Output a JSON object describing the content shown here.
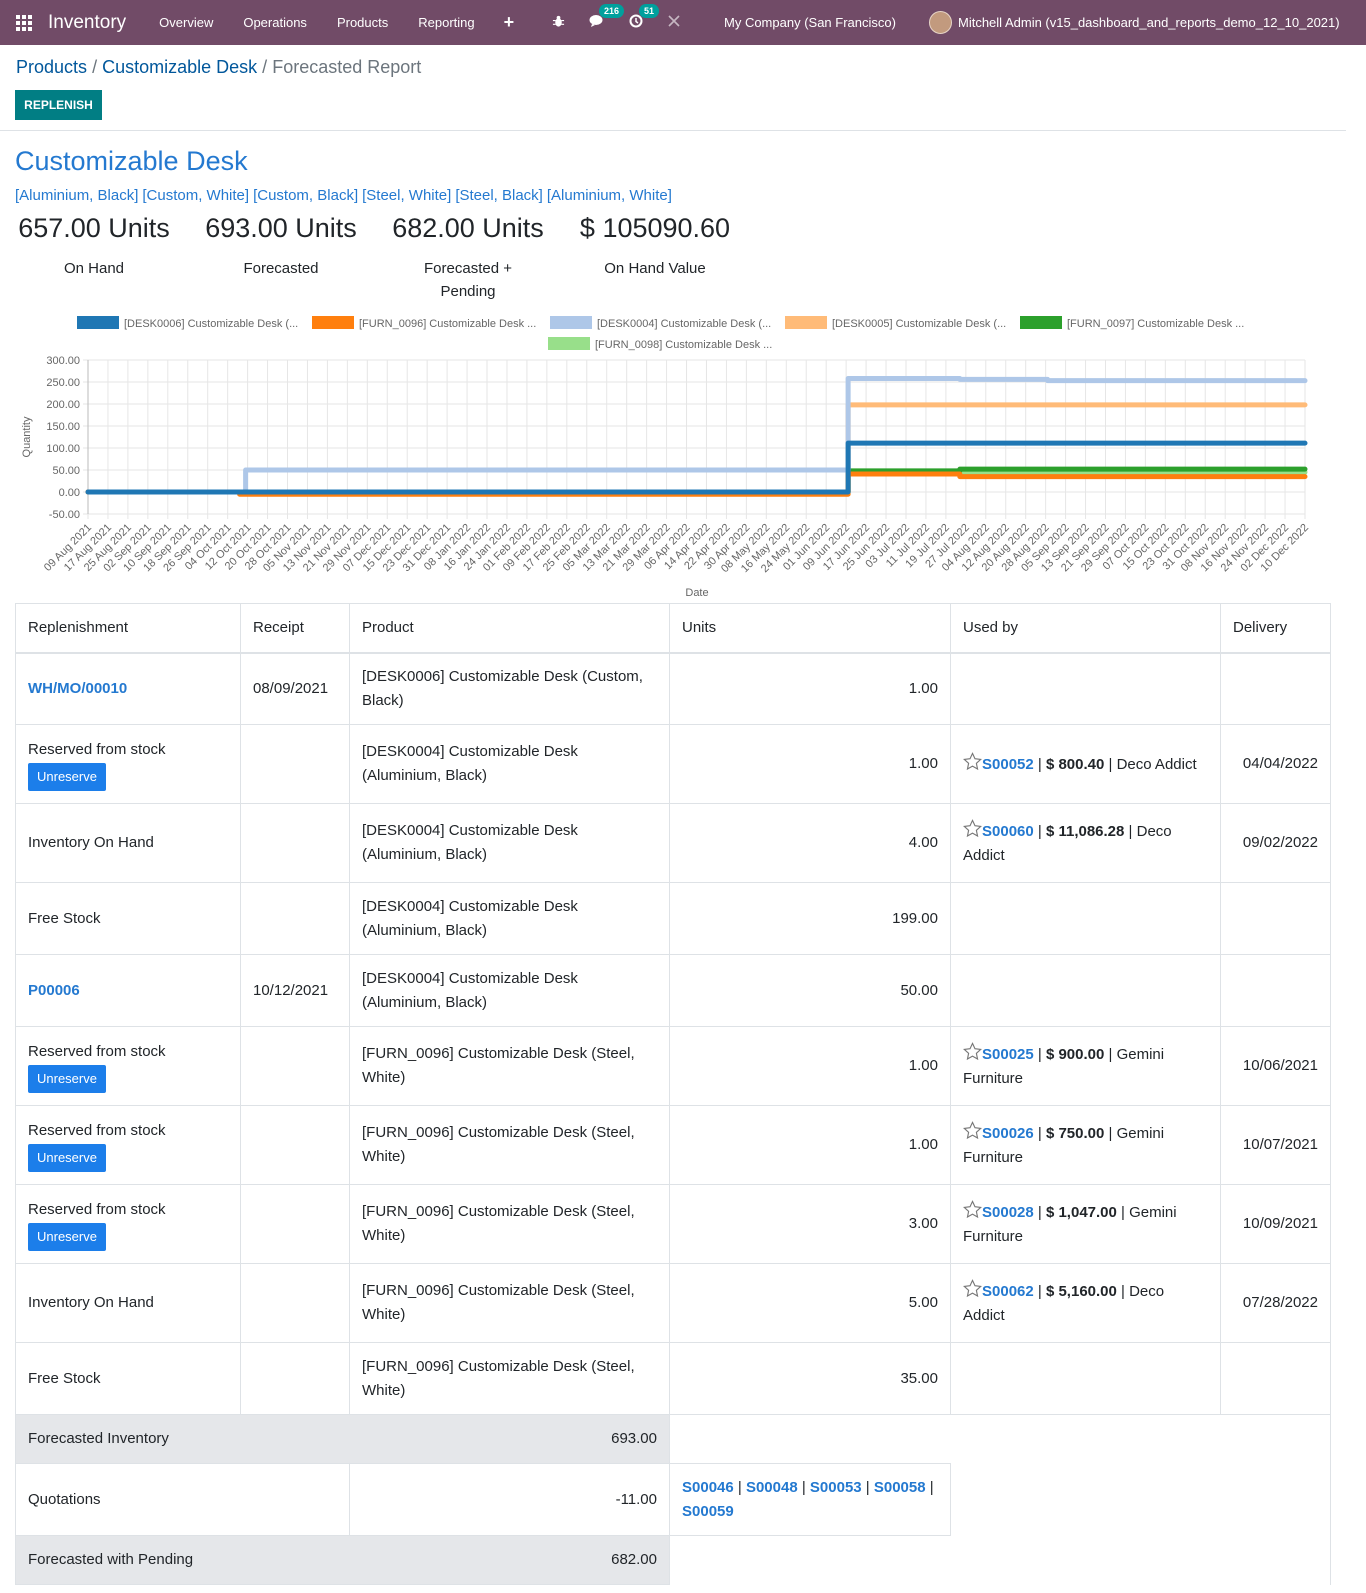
{
  "navbar": {
    "app_name": "Inventory",
    "menus": [
      "Overview",
      "Operations",
      "Products",
      "Reporting"
    ],
    "messages_count": "216",
    "activities_count": "51",
    "company": "My Company (San Francisco)",
    "user": "Mitchell Admin (v15_dashboard_and_reports_demo_12_10_2021)"
  },
  "breadcrumb": {
    "products": "Products",
    "product": "Customizable Desk",
    "current": "Forecasted Report"
  },
  "control": {
    "replenish": "REPLENISH"
  },
  "header": {
    "title": "Customizable Desk",
    "variants": [
      "[Aluminium, Black]",
      "[Custom, White]",
      "[Custom, Black]",
      "[Steel, White]",
      "[Steel, Black]",
      "[Aluminium, White]"
    ],
    "kpis": [
      {
        "value": "657.00 Units",
        "label": "On Hand"
      },
      {
        "value": "693.00 Units",
        "label": "Forecasted"
      },
      {
        "value": "682.00 Units",
        "label": "Forecasted + Pending"
      },
      {
        "value": "$ 105090.60",
        "label": "On Hand Value"
      }
    ]
  },
  "chart_data": {
    "type": "line",
    "xlabel": "Date",
    "ylabel": "Quantity",
    "ylim": [
      -50,
      300
    ],
    "yticks": [
      "300.00",
      "250.00",
      "200.00",
      "150.00",
      "100.00",
      "50.00",
      "0.00",
      "-50.00"
    ],
    "ytick_values": [
      300,
      250,
      200,
      150,
      100,
      50,
      0,
      -50
    ],
    "grid": true,
    "legend_position": "top",
    "categories": [
      "09 Aug 2021",
      "17 Aug 2021",
      "25 Aug 2021",
      "02 Sep 2021",
      "10 Sep 2021",
      "18 Sep 2021",
      "26 Sep 2021",
      "04 Oct 2021",
      "12 Oct 2021",
      "20 Oct 2021",
      "28 Oct 2021",
      "05 Nov 2021",
      "13 Nov 2021",
      "21 Nov 2021",
      "29 Nov 2021",
      "07 Dec 2021",
      "15 Dec 2021",
      "23 Dec 2021",
      "31 Dec 2021",
      "08 Jan 2022",
      "16 Jan 2022",
      "24 Jan 2022",
      "01 Feb 2022",
      "09 Feb 2022",
      "17 Feb 2022",
      "25 Feb 2022",
      "05 Mar 2022",
      "13 Mar 2022",
      "21 Mar 2022",
      "29 Mar 2022",
      "06 Apr 2022",
      "14 Apr 2022",
      "22 Apr 2022",
      "30 Apr 2022",
      "08 May 2022",
      "16 May 2022",
      "24 May 2022",
      "01 Jun 2022",
      "09 Jun 2022",
      "17 Jun 2022",
      "25 Jun 2022",
      "03 Jul 2022",
      "11 Jul 2022",
      "19 Jul 2022",
      "27 Jul 2022",
      "04 Aug 2022",
      "12 Aug 2022",
      "20 Aug 2022",
      "28 Aug 2022",
      "05 Sep 2022",
      "13 Sep 2022",
      "21 Sep 2022",
      "29 Sep 2022",
      "07 Oct 2022",
      "15 Oct 2022",
      "23 Oct 2022",
      "31 Oct 2022",
      "08 Nov 2022",
      "16 Nov 2022",
      "24 Nov 2022",
      "02 Dec 2022",
      "10 Dec 2022"
    ],
    "series": [
      {
        "name": "[DESK0006] Customizable Desk (...",
        "color": "#1f77b4",
        "steps": [
          [
            0,
            0
          ],
          [
            38.1,
            111
          ]
        ]
      },
      {
        "name": "[FURN_0096] Customizable Desk ...",
        "color": "#ff7f0e",
        "steps": [
          [
            0,
            0
          ],
          [
            7.6,
            -5
          ],
          [
            38.1,
            41
          ],
          [
            43.7,
            35
          ]
        ]
      },
      {
        "name": "[DESK0004] Customizable Desk (...",
        "color": "#aec7e8",
        "steps": [
          [
            0,
            0
          ],
          [
            7.9,
            50
          ],
          [
            38.1,
            258
          ],
          [
            43.7,
            256
          ],
          [
            48.1,
            253
          ]
        ]
      },
      {
        "name": "[DESK0005] Customizable Desk (...",
        "color": "#ffbb78",
        "steps": [
          [
            0,
            0
          ],
          [
            38.1,
            198
          ]
        ]
      },
      {
        "name": "[FURN_0097] Customizable Desk ...",
        "color": "#2ca02c",
        "steps": [
          [
            0,
            0
          ],
          [
            38.1,
            48
          ],
          [
            43.7,
            52
          ]
        ]
      },
      {
        "name": "[FURN_0098] Customizable Desk ...",
        "color": "#98df8a",
        "steps": [
          [
            0,
            0
          ],
          [
            38.1,
            45
          ]
        ]
      }
    ]
  },
  "table": {
    "headers": {
      "replenishment": "Replenishment",
      "receipt": "Receipt",
      "product": "Product",
      "units": "Units",
      "used_by": "Used by",
      "delivery": "Delivery"
    },
    "unreserve_label": "Unreserve",
    "rows": [
      {
        "replenishment": "WH/MO/00010",
        "is_link": true,
        "receipt": "08/09/2021",
        "product": "[DESK0006] Customizable Desk (Custom, Black)",
        "units": "1.00",
        "used_by": null,
        "delivery": ""
      },
      {
        "replenishment": "Reserved from stock",
        "unreserve": true,
        "receipt": "",
        "product": "[DESK0004] Customizable Desk (Aluminium, Black)",
        "units": "1.00",
        "used_by": {
          "so": "S00052",
          "amount": "$ 800.40",
          "partner": "Deco Addict"
        },
        "delivery": "04/04/2022"
      },
      {
        "replenishment": "Inventory On Hand",
        "receipt": "",
        "product": "[DESK0004] Customizable Desk (Aluminium, Black)",
        "units": "4.00",
        "used_by": {
          "so": "S00060",
          "amount": "$ 11,086.28",
          "partner": "Deco Addict"
        },
        "delivery": "09/02/2022"
      },
      {
        "replenishment": "Free Stock",
        "receipt": "",
        "product": "[DESK0004] Customizable Desk (Aluminium, Black)",
        "units": "199.00",
        "used_by": null,
        "delivery": ""
      },
      {
        "replenishment": "P00006",
        "is_link": true,
        "receipt": "10/12/2021",
        "product": "[DESK0004] Customizable Desk (Aluminium, Black)",
        "units": "50.00",
        "used_by": null,
        "delivery": ""
      },
      {
        "replenishment": "Reserved from stock",
        "unreserve": true,
        "receipt": "",
        "product": "[FURN_0096] Customizable Desk (Steel, White)",
        "units": "1.00",
        "used_by": {
          "so": "S00025",
          "amount": "$ 900.00",
          "partner": "Gemini Furniture"
        },
        "delivery": "10/06/2021"
      },
      {
        "replenishment": "Reserved from stock",
        "unreserve": true,
        "receipt": "",
        "product": "[FURN_0096] Customizable Desk (Steel, White)",
        "units": "1.00",
        "used_by": {
          "so": "S00026",
          "amount": "$ 750.00",
          "partner": "Gemini Furniture"
        },
        "delivery": "10/07/2021"
      },
      {
        "replenishment": "Reserved from stock",
        "unreserve": true,
        "receipt": "",
        "product": "[FURN_0096] Customizable Desk (Steel, White)",
        "units": "3.00",
        "used_by": {
          "so": "S00028",
          "amount": "$ 1,047.00",
          "partner": "Gemini Furniture"
        },
        "delivery": "10/09/2021"
      },
      {
        "replenishment": "Inventory On Hand",
        "receipt": "",
        "product": "[FURN_0096] Customizable Desk (Steel, White)",
        "units": "5.00",
        "used_by": {
          "so": "S00062",
          "amount": "$ 5,160.00",
          "partner": "Deco Addict"
        },
        "delivery": "07/28/2022"
      },
      {
        "replenishment": "Free Stock",
        "receipt": "",
        "product": "[FURN_0096] Customizable Desk (Steel, White)",
        "units": "35.00",
        "used_by": null,
        "delivery": ""
      }
    ],
    "footer": {
      "forecasted_inventory_label": "Forecasted Inventory",
      "forecasted_inventory_value": "693.00",
      "quotations_label": "Quotations",
      "quotations_value": "-11.00",
      "quotations": [
        "S00046",
        "S00048",
        "S00053",
        "S00058",
        "S00059"
      ],
      "forecasted_pending_label": "Forecasted with Pending",
      "forecasted_pending_value": "682.00"
    }
  }
}
